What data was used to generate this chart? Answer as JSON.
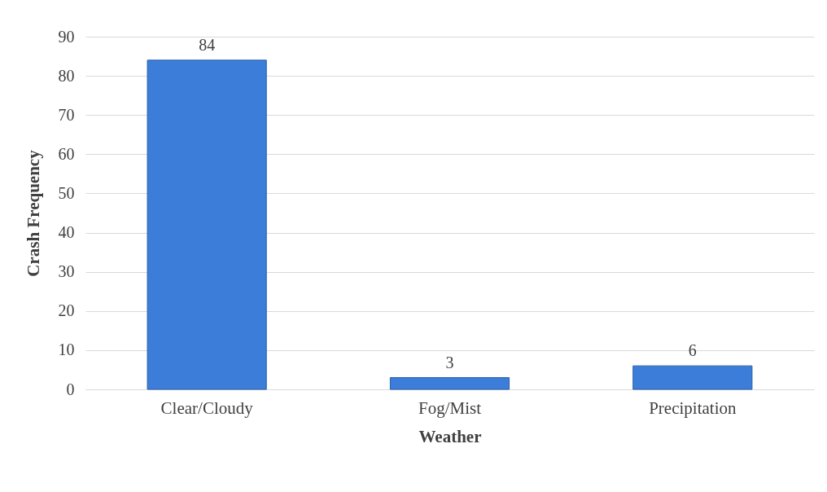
{
  "chart_data": {
    "type": "bar",
    "xlabel": "Weather",
    "ylabel": "Crash Frequency",
    "categories": [
      "Clear/Cloudy",
      "Fog/Mist",
      "Precipitation"
    ],
    "values": [
      84,
      3,
      6
    ],
    "color": "#3b7dd8",
    "ylim": [
      0,
      90
    ],
    "yticks": [
      0,
      10,
      20,
      30,
      40,
      50,
      60,
      70,
      80,
      90
    ],
    "grid": "y",
    "data_labels": true
  }
}
